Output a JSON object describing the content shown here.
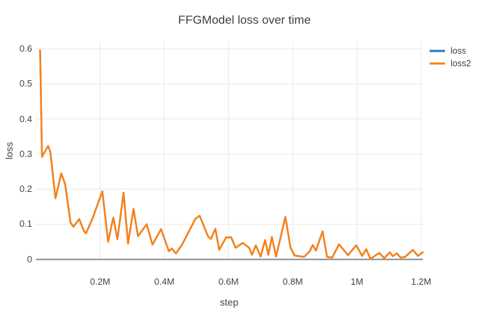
{
  "title": "FFGModel loss over time",
  "axes": {
    "x": {
      "label": "step",
      "ticks": [
        {
          "value": 200000,
          "label": "0.2M"
        },
        {
          "value": 400000,
          "label": "0.4M"
        },
        {
          "value": 600000,
          "label": "0.6M"
        },
        {
          "value": 800000,
          "label": "0.8M"
        },
        {
          "value": 1000000,
          "label": "1M"
        },
        {
          "value": 1200000,
          "label": "1.2M"
        }
      ]
    },
    "y": {
      "label": "loss",
      "ticks": [
        {
          "value": 0,
          "label": "0"
        },
        {
          "value": 0.1,
          "label": "0.1"
        },
        {
          "value": 0.2,
          "label": "0.2"
        },
        {
          "value": 0.3,
          "label": "0.3"
        },
        {
          "value": 0.4,
          "label": "0.4"
        },
        {
          "value": 0.5,
          "label": "0.5"
        },
        {
          "value": 0.6,
          "label": "0.6"
        }
      ]
    }
  },
  "legend": {
    "items": [
      {
        "label": "loss",
        "color": "#1f77b4"
      },
      {
        "label": "loss2",
        "color": "#ff7f0e"
      }
    ]
  },
  "colors": {
    "grid": "#e8e8e8",
    "zeroline": "#8c8c8c",
    "text": "#3f4347",
    "title": "#3b4045",
    "background": "#ffffff",
    "series_blue": "#1f77b4",
    "series_orange": "#ff7f0e"
  },
  "chart_data": {
    "type": "line",
    "title": "FFGModel loss over time",
    "xlabel": "step",
    "ylabel": "loss",
    "x_range": [
      0,
      1205000
    ],
    "y_range": [
      0,
      0.62
    ],
    "grid": true,
    "legend_position": "top-right-outside",
    "x": [
      13000,
      19000,
      38000,
      45000,
      61000,
      79000,
      91000,
      108000,
      117000,
      135000,
      149000,
      156000,
      177000,
      207000,
      225000,
      241000,
      254000,
      273000,
      287000,
      304000,
      318000,
      345000,
      363000,
      390000,
      414000,
      423000,
      436000,
      454000,
      497000,
      510000,
      536000,
      545000,
      559000,
      571000,
      592000,
      608000,
      622000,
      644000,
      664000,
      673000,
      685000,
      700000,
      714000,
      724000,
      735000,
      748000,
      777000,
      793000,
      806000,
      835000,
      853000,
      862000,
      872000,
      893000,
      907000,
      923000,
      944000,
      965000,
      972000,
      998000,
      1016000,
      1029000,
      1042000,
      1060000,
      1070000,
      1085000,
      1102000,
      1112000,
      1124000,
      1136000,
      1150000,
      1174000,
      1190000,
      1205000
    ],
    "series": [
      {
        "name": "loss",
        "color": "#1f77b4",
        "values": [
          0.596,
          0.292,
          0.323,
          0.306,
          0.174,
          0.245,
          0.215,
          0.104,
          0.093,
          0.115,
          0.082,
          0.074,
          0.118,
          0.194,
          0.05,
          0.119,
          0.057,
          0.19,
          0.045,
          0.144,
          0.066,
          0.1,
          0.042,
          0.086,
          0.023,
          0.031,
          0.017,
          0.04,
          0.116,
          0.124,
          0.066,
          0.058,
          0.087,
          0.027,
          0.062,
          0.063,
          0.033,
          0.047,
          0.033,
          0.013,
          0.04,
          0.008,
          0.055,
          0.013,
          0.064,
          0.008,
          0.121,
          0.033,
          0.011,
          0.007,
          0.023,
          0.041,
          0.025,
          0.08,
          0.007,
          0.005,
          0.043,
          0.02,
          0.012,
          0.04,
          0.01,
          0.029,
          0.001,
          0.013,
          0.018,
          0.003,
          0.02,
          0.009,
          0.017,
          0.005,
          0.007,
          0.027,
          0.01,
          0.02
        ]
      },
      {
        "name": "loss2",
        "color": "#ff7f0e",
        "values": [
          0.596,
          0.292,
          0.323,
          0.306,
          0.174,
          0.245,
          0.215,
          0.104,
          0.093,
          0.115,
          0.082,
          0.074,
          0.118,
          0.194,
          0.05,
          0.119,
          0.057,
          0.19,
          0.045,
          0.144,
          0.066,
          0.1,
          0.042,
          0.086,
          0.023,
          0.031,
          0.017,
          0.04,
          0.116,
          0.124,
          0.066,
          0.058,
          0.087,
          0.027,
          0.062,
          0.063,
          0.033,
          0.047,
          0.033,
          0.013,
          0.04,
          0.008,
          0.055,
          0.013,
          0.064,
          0.008,
          0.121,
          0.033,
          0.011,
          0.007,
          0.023,
          0.041,
          0.025,
          0.08,
          0.007,
          0.005,
          0.043,
          0.02,
          0.012,
          0.04,
          0.01,
          0.029,
          0.001,
          0.013,
          0.018,
          0.003,
          0.02,
          0.009,
          0.017,
          0.005,
          0.007,
          0.027,
          0.01,
          0.02
        ]
      }
    ]
  }
}
